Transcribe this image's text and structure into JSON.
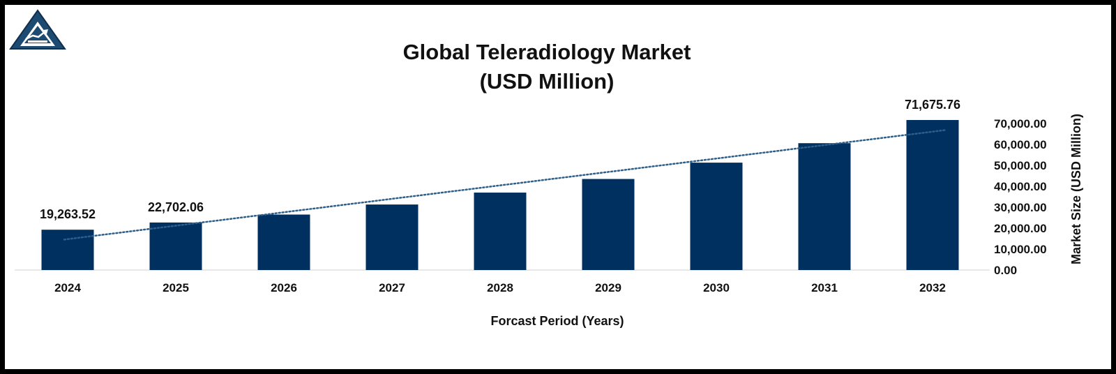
{
  "chart_data": {
    "type": "bar",
    "title_lines": [
      "Global Teleradiology Market",
      "(USD Million)"
    ],
    "xlabel": "Forcast Period (Years)",
    "ylabel": "Market Size (USD  Million)",
    "categories": [
      "2024",
      "2025",
      "2026",
      "2027",
      "2028",
      "2029",
      "2030",
      "2031",
      "2032"
    ],
    "values": [
      19263.52,
      22702.06,
      26500,
      31300,
      37000,
      43500,
      51300,
      60600,
      71675.76
    ],
    "data_labels": [
      {
        "index": 0,
        "text": "19,263.52"
      },
      {
        "index": 1,
        "text": "22,702.06"
      },
      {
        "index": 8,
        "text": "71,675.76"
      }
    ],
    "yticks": [
      {
        "value": 0,
        "label": "0.00"
      },
      {
        "value": 10000,
        "label": "10,000.00"
      },
      {
        "value": 20000,
        "label": "20,000.00"
      },
      {
        "value": 30000,
        "label": "30,000.00"
      },
      {
        "value": 40000,
        "label": "40,000.00"
      },
      {
        "value": 50000,
        "label": "50,000.00"
      },
      {
        "value": 60000,
        "label": "60,000.00"
      },
      {
        "value": 70000,
        "label": "70,000.00"
      }
    ],
    "ylim": [
      0,
      70000
    ],
    "y_axis_position": "right",
    "grid": false,
    "legend": "none",
    "trendline": {
      "type": "linear",
      "style": "dotted"
    },
    "colors": {
      "bar": "#00305f",
      "trendline": "#2e5f8a",
      "text": "#111111",
      "border": "#000000"
    }
  },
  "logo": {
    "name": "triangle-chart-logo"
  }
}
